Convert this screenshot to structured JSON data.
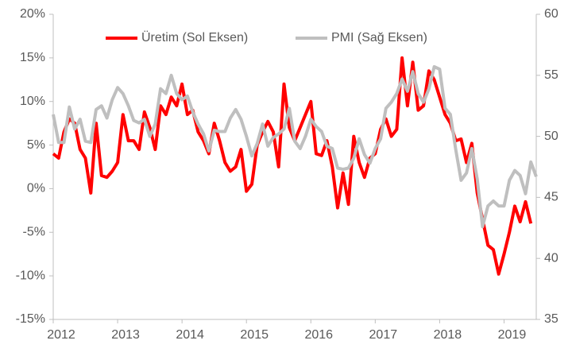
{
  "chart_data": {
    "type": "line",
    "categories": [
      "2012",
      null,
      null,
      null,
      null,
      null,
      null,
      null,
      null,
      null,
      null,
      null,
      "2013",
      null,
      null,
      null,
      null,
      null,
      null,
      null,
      null,
      null,
      null,
      null,
      "2014",
      null,
      null,
      null,
      null,
      null,
      null,
      null,
      null,
      null,
      null,
      null,
      "2015",
      null,
      null,
      null,
      null,
      null,
      null,
      null,
      null,
      null,
      null,
      null,
      "2016",
      null,
      null,
      null,
      null,
      null,
      null,
      null,
      null,
      null,
      null,
      null,
      "2017",
      null,
      null,
      null,
      null,
      null,
      null,
      null,
      null,
      null,
      null,
      null,
      "2018",
      null,
      null,
      null,
      null,
      null,
      null,
      null,
      null,
      null,
      null,
      null,
      "2019",
      null,
      null,
      null,
      null,
      null,
      null
    ],
    "series": [
      {
        "name": "Üretim (Sol Eksen)",
        "color": "#ff0000",
        "axis": "y",
        "values": [
          4,
          3.5,
          6.5,
          8,
          7.5,
          4.5,
          3.5,
          -0.5,
          7.5,
          1.5,
          1.3,
          2,
          3,
          8.5,
          5.5,
          5.5,
          4.5,
          8.8,
          7,
          4.5,
          9.5,
          8.5,
          10.5,
          9.5,
          12,
          8.5,
          9,
          6.5,
          5.5,
          4,
          7.5,
          5.5,
          3,
          2,
          2.5,
          4.5,
          -0.3,
          0.5,
          5,
          6.5,
          7.7,
          6.5,
          2.5,
          12,
          7,
          5.5,
          7,
          8.5,
          10,
          4,
          3.8,
          5.5,
          2.5,
          -2.2,
          1.8,
          -1.8,
          6,
          3,
          1.3,
          3.5,
          4,
          6.8,
          8,
          6,
          6.8,
          15,
          9.5,
          14.5,
          9,
          9.5,
          13.5,
          12.5,
          10.5,
          8.5,
          7.5,
          5.5,
          5.7,
          3,
          5.2,
          -0.5,
          -3.5,
          -6.5,
          -7,
          -9.8,
          -7.5,
          -5,
          -2,
          -3.8,
          -1.5,
          -4,
          null
        ]
      },
      {
        "name": "PMI (Sağ Eksen)",
        "color": "#bfbfbf",
        "axis": "y2",
        "values": [
          51.8,
          49.5,
          49.5,
          52.4,
          50.6,
          51.4,
          49.6,
          49.5,
          52.2,
          52.5,
          51.5,
          53,
          54,
          53.5,
          52.5,
          51.3,
          51.1,
          51.4,
          50,
          51,
          53.9,
          53.5,
          55,
          53.5,
          53,
          53.3,
          52,
          51,
          50.2,
          48.8,
          50.5,
          50.4,
          50.4,
          51.5,
          52.2,
          51.4,
          50,
          48.4,
          49.4,
          51,
          49.2,
          49.9,
          50.2,
          50.6,
          52.3,
          49.6,
          49,
          50,
          51.4,
          50.8,
          50.4,
          49.2,
          49,
          47.4,
          47.3,
          47.4,
          48.2,
          49.8,
          48.5,
          47.8,
          49,
          49.8,
          52.3,
          52.8,
          53.5,
          54.7,
          53.7,
          55.3,
          53.5,
          52.8,
          53.9,
          55.7,
          55.5,
          52.3,
          51.8,
          48.9,
          46.4,
          47,
          49,
          46.5,
          42.6,
          44.3,
          44.7,
          44.3,
          44.3,
          46.4,
          47.2,
          46.8,
          45.3,
          47.9,
          46.7
        ]
      }
    ],
    "ylim": [
      -15,
      20
    ],
    "yticks": [
      {
        "value": -15,
        "label": "-15%"
      },
      {
        "value": -10,
        "label": "-10%"
      },
      {
        "value": -5,
        "label": "-5%"
      },
      {
        "value": 0,
        "label": "0%"
      },
      {
        "value": 5,
        "label": "5%"
      },
      {
        "value": 10,
        "label": "10%"
      },
      {
        "value": 15,
        "label": "15%"
      },
      {
        "value": 20,
        "label": "20%"
      }
    ],
    "y2lim": [
      35,
      60
    ],
    "y2ticks": [
      35,
      40,
      45,
      50,
      55,
      60
    ],
    "legend": "top"
  }
}
